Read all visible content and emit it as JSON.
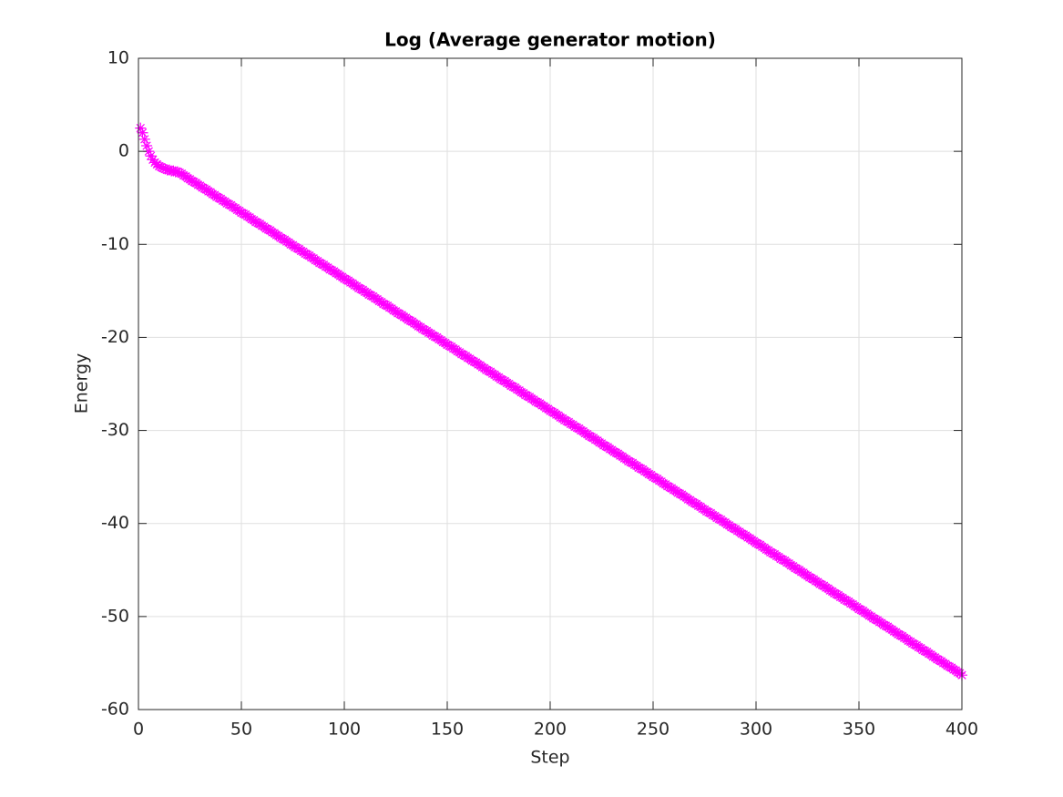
{
  "chart_data": {
    "type": "scatter",
    "title": "Log (Average generator motion)",
    "x_label": "Step",
    "y_label": "Energy",
    "xlim": [
      0,
      400
    ],
    "xticks": [
      0,
      50,
      100,
      150,
      200,
      250,
      300,
      350,
      400
    ],
    "ylim": [
      -60,
      10
    ],
    "yticks": [
      -60,
      -50,
      -40,
      -30,
      -20,
      -10,
      0,
      10
    ],
    "grid": true,
    "marker": "*",
    "series": [
      {
        "color": "#ff00ff",
        "x": [
          1,
          2,
          3,
          4,
          5,
          6,
          7,
          8,
          9,
          10,
          11,
          12,
          13,
          14,
          15,
          16,
          17,
          18,
          19,
          20,
          21,
          22,
          23,
          24,
          25,
          26,
          27,
          28,
          29,
          30,
          31,
          32,
          33,
          34,
          35,
          36,
          37,
          38,
          39,
          40,
          41,
          42,
          43,
          44,
          45,
          46,
          47,
          48,
          49,
          50,
          51,
          52,
          53,
          54,
          55,
          56,
          57,
          58,
          59,
          60,
          61,
          62,
          63,
          64,
          65,
          66,
          67,
          68,
          69,
          70,
          71,
          72,
          73,
          74,
          75,
          76,
          77,
          78,
          79,
          80,
          81,
          82,
          83,
          84,
          85,
          86,
          87,
          88,
          89,
          90,
          91,
          92,
          93,
          94,
          95,
          96,
          97,
          98,
          99,
          100,
          101,
          102,
          103,
          104,
          105,
          106,
          107,
          108,
          109,
          110,
          111,
          112,
          113,
          114,
          115,
          116,
          117,
          118,
          119,
          120,
          121,
          122,
          123,
          124,
          125,
          126,
          127,
          128,
          129,
          130,
          131,
          132,
          133,
          134,
          135,
          136,
          137,
          138,
          139,
          140,
          141,
          142,
          143,
          144,
          145,
          146,
          147,
          148,
          149,
          150,
          151,
          152,
          153,
          154,
          155,
          156,
          157,
          158,
          159,
          160,
          161,
          162,
          163,
          164,
          165,
          166,
          167,
          168,
          169,
          170,
          171,
          172,
          173,
          174,
          175,
          176,
          177,
          178,
          179,
          180,
          181,
          182,
          183,
          184,
          185,
          186,
          187,
          188,
          189,
          190,
          191,
          192,
          193,
          194,
          195,
          196,
          197,
          198,
          199,
          200,
          201,
          202,
          203,
          204,
          205,
          206,
          207,
          208,
          209,
          210,
          211,
          212,
          213,
          214,
          215,
          216,
          217,
          218,
          219,
          220,
          221,
          222,
          223,
          224,
          225,
          226,
          227,
          228,
          229,
          230,
          231,
          232,
          233,
          234,
          235,
          236,
          237,
          238,
          239,
          240,
          241,
          242,
          243,
          244,
          245,
          246,
          247,
          248,
          249,
          250,
          251,
          252,
          253,
          254,
          255,
          256,
          257,
          258,
          259,
          260,
          261,
          262,
          263,
          264,
          265,
          266,
          267,
          268,
          269,
          270,
          271,
          272,
          273,
          274,
          275,
          276,
          277,
          278,
          279,
          280,
          281,
          282,
          283,
          284,
          285,
          286,
          287,
          288,
          289,
          290,
          291,
          292,
          293,
          294,
          295,
          296,
          297,
          298,
          299,
          300,
          301,
          302,
          303,
          304,
          305,
          306,
          307,
          308,
          309,
          310,
          311,
          312,
          313,
          314,
          315,
          316,
          317,
          318,
          319,
          320,
          321,
          322,
          323,
          324,
          325,
          326,
          327,
          328,
          329,
          330,
          331,
          332,
          333,
          334,
          335,
          336,
          337,
          338,
          339,
          340,
          341,
          342,
          343,
          344,
          345,
          346,
          347,
          348,
          349,
          350,
          351,
          352,
          353,
          354,
          355,
          356,
          357,
          358,
          359,
          360,
          361,
          362,
          363,
          364,
          365,
          366,
          367,
          368,
          369,
          370,
          371,
          372,
          373,
          374,
          375,
          376,
          377,
          378,
          379,
          380,
          381,
          382,
          383,
          384,
          385,
          386,
          387,
          388,
          389,
          390,
          391,
          392,
          393,
          394,
          395,
          396,
          397,
          398,
          399,
          400
        ],
        "values": [
          2.5,
          2.0,
          1.3,
          0.6,
          0.0,
          -0.5,
          -0.9,
          -1.2,
          -1.4,
          -1.6,
          -1.7,
          -1.8,
          -1.9,
          -2.0,
          -2.0,
          -2.1,
          -2.1,
          -2.2,
          -2.2,
          -2.3,
          -2.4,
          -2.6,
          -2.7,
          -2.9,
          -3.0,
          -3.2,
          -3.3,
          -3.4,
          -3.6,
          -3.7,
          -3.9,
          -4.0,
          -4.1,
          -4.3,
          -4.4,
          -4.6,
          -4.7,
          -4.9,
          -5.0,
          -5.1,
          -5.3,
          -5.4,
          -5.6,
          -5.7,
          -5.8,
          -6.0,
          -6.1,
          -6.3,
          -6.4,
          -6.6,
          -6.7,
          -6.8,
          -7.0,
          -7.1,
          -7.3,
          -7.4,
          -7.6,
          -7.7,
          -7.8,
          -8.0,
          -8.1,
          -8.3,
          -8.4,
          -8.5,
          -8.7,
          -8.8,
          -9.0,
          -9.1,
          -9.3,
          -9.4,
          -9.5,
          -9.7,
          -9.8,
          -10.0,
          -10.1,
          -10.3,
          -10.4,
          -10.5,
          -10.7,
          -10.8,
          -11.0,
          -11.1,
          -11.2,
          -11.4,
          -11.5,
          -11.7,
          -11.8,
          -12.0,
          -12.1,
          -12.2,
          -12.4,
          -12.5,
          -12.7,
          -12.8,
          -12.9,
          -13.1,
          -13.2,
          -13.4,
          -13.5,
          -13.7,
          -13.8,
          -13.9,
          -14.1,
          -14.2,
          -14.4,
          -14.5,
          -14.7,
          -14.8,
          -14.9,
          -15.1,
          -15.2,
          -15.4,
          -15.5,
          -15.6,
          -15.8,
          -15.9,
          -16.1,
          -16.2,
          -16.4,
          -16.5,
          -16.6,
          -16.8,
          -16.9,
          -17.1,
          -17.2,
          -17.4,
          -17.5,
          -17.6,
          -17.8,
          -17.9,
          -18.1,
          -18.2,
          -18.3,
          -18.5,
          -18.6,
          -18.8,
          -18.9,
          -19.1,
          -19.2,
          -19.3,
          -19.5,
          -19.6,
          -19.8,
          -19.9,
          -20.0,
          -20.2,
          -20.3,
          -20.5,
          -20.6,
          -20.8,
          -20.9,
          -21.0,
          -21.2,
          -21.3,
          -21.5,
          -21.6,
          -21.8,
          -21.9,
          -22.0,
          -22.2,
          -22.3,
          -22.5,
          -22.6,
          -22.7,
          -22.9,
          -23.0,
          -23.2,
          -23.3,
          -23.5,
          -23.6,
          -23.7,
          -23.9,
          -24.0,
          -24.2,
          -24.3,
          -24.5,
          -24.6,
          -24.7,
          -24.9,
          -25.0,
          -25.2,
          -25.3,
          -25.4,
          -25.6,
          -25.7,
          -25.9,
          -26.0,
          -26.2,
          -26.3,
          -26.4,
          -26.6,
          -26.7,
          -26.9,
          -27.0,
          -27.1,
          -27.3,
          -27.4,
          -27.6,
          -27.7,
          -27.9,
          -28.0,
          -28.1,
          -28.3,
          -28.4,
          -28.6,
          -28.7,
          -28.9,
          -29.0,
          -29.1,
          -29.3,
          -29.4,
          -29.6,
          -29.7,
          -29.8,
          -30.0,
          -30.1,
          -30.3,
          -30.4,
          -30.6,
          -30.7,
          -30.8,
          -31.0,
          -31.1,
          -31.3,
          -31.4,
          -31.6,
          -31.7,
          -31.8,
          -32.0,
          -32.1,
          -32.3,
          -32.4,
          -32.5,
          -32.7,
          -32.8,
          -33.0,
          -33.1,
          -33.3,
          -33.4,
          -33.5,
          -33.7,
          -33.8,
          -34.0,
          -34.1,
          -34.2,
          -34.4,
          -34.5,
          -34.7,
          -34.8,
          -35.0,
          -35.1,
          -35.2,
          -35.4,
          -35.5,
          -35.7,
          -35.8,
          -36.0,
          -36.1,
          -36.2,
          -36.4,
          -36.5,
          -36.7,
          -36.8,
          -36.9,
          -37.1,
          -37.2,
          -37.4,
          -37.5,
          -37.7,
          -37.8,
          -37.9,
          -38.1,
          -38.2,
          -38.4,
          -38.5,
          -38.7,
          -38.8,
          -38.9,
          -39.1,
          -39.2,
          -39.4,
          -39.5,
          -39.6,
          -39.8,
          -39.9,
          -40.1,
          -40.2,
          -40.4,
          -40.5,
          -40.6,
          -40.8,
          -40.9,
          -41.1,
          -41.2,
          -41.3,
          -41.5,
          -41.6,
          -41.8,
          -41.9,
          -42.1,
          -42.2,
          -42.3,
          -42.5,
          -42.6,
          -42.8,
          -42.9,
          -43.1,
          -43.2,
          -43.3,
          -43.5,
          -43.6,
          -43.8,
          -43.9,
          -44.0,
          -44.2,
          -44.3,
          -44.5,
          -44.6,
          -44.8,
          -44.9,
          -45.0,
          -45.2,
          -45.3,
          -45.5,
          -45.6,
          -45.8,
          -45.9,
          -46.0,
          -46.2,
          -46.3,
          -46.5,
          -46.6,
          -46.7,
          -46.9,
          -47.0,
          -47.2,
          -47.3,
          -47.5,
          -47.6,
          -47.7,
          -47.9,
          -48.0,
          -48.2,
          -48.3,
          -48.4,
          -48.6,
          -48.7,
          -48.9,
          -49.0,
          -49.2,
          -49.3,
          -49.4,
          -49.6,
          -49.7,
          -49.9,
          -50.0,
          -50.2,
          -50.3,
          -50.4,
          -50.6,
          -50.7,
          -50.9,
          -51.0,
          -51.1,
          -51.3,
          -51.4,
          -51.6,
          -51.7,
          -51.9,
          -52.0,
          -52.1,
          -52.3,
          -52.4,
          -52.6,
          -52.7,
          -52.9,
          -53.0,
          -53.1,
          -53.3,
          -53.4,
          -53.6,
          -53.7,
          -53.8,
          -54.0,
          -54.1,
          -54.3,
          -54.4,
          -54.6,
          -54.7,
          -54.8,
          -55.0,
          -55.1,
          -55.3,
          -55.4,
          -55.5,
          -55.7,
          -55.8,
          -56.0,
          -56.1,
          -56.3
        ]
      }
    ]
  }
}
